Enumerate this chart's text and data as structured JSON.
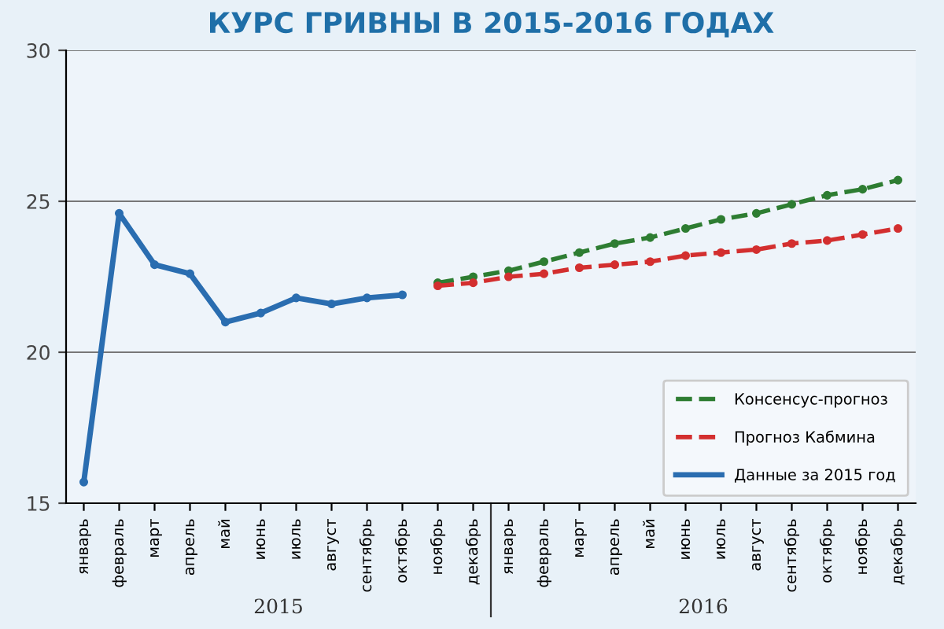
{
  "chart_data": {
    "type": "line",
    "title": "КУРС ГРИВНЫ В 2015-2016 ГОДАХ",
    "categories": [
      "январь",
      "февраль",
      "март",
      "апрель",
      "май",
      "июнь",
      "июль",
      "август",
      "сентябрь",
      "октябрь",
      "ноябрь",
      "декабрь",
      "январь",
      "февраль",
      "март",
      "апрель",
      "май",
      "июнь",
      "июль",
      "август",
      "сентябрь",
      "октябрь",
      "ноябрь",
      "декабрь"
    ],
    "series": [
      {
        "name": "Консенсус-прогноз",
        "color": "#2e7d32",
        "line_style": "dashed",
        "values": [
          null,
          null,
          null,
          null,
          null,
          null,
          null,
          null,
          null,
          null,
          22.3,
          22.5,
          22.7,
          23.0,
          23.3,
          23.6,
          23.8,
          24.1,
          24.4,
          24.6,
          24.9,
          25.2,
          25.4,
          25.7
        ]
      },
      {
        "name": "Прогноз Кабмина",
        "color": "#d32f2f",
        "line_style": "dashed",
        "values": [
          null,
          null,
          null,
          null,
          null,
          null,
          null,
          null,
          null,
          null,
          22.2,
          22.3,
          22.5,
          22.6,
          22.8,
          22.9,
          23.0,
          23.2,
          23.3,
          23.4,
          23.6,
          23.7,
          23.9,
          24.1
        ]
      },
      {
        "name": "Данные за 2015 год",
        "color": "#2a6db0",
        "line_style": "solid",
        "values": [
          15.7,
          24.6,
          22.9,
          22.6,
          21.0,
          21.3,
          21.8,
          21.6,
          21.8,
          21.9,
          null,
          null,
          null,
          null,
          null,
          null,
          null,
          null,
          null,
          null,
          null,
          null,
          null,
          null
        ]
      }
    ],
    "annotations": [
      "2015",
      "2016"
    ],
    "ylim": [
      15,
      30
    ],
    "yticks": [
      15,
      20,
      25,
      30
    ],
    "grid": "y",
    "legend": "bottom right",
    "marker": "circle"
  }
}
